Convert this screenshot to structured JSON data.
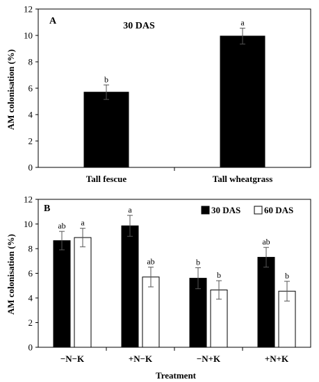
{
  "chart_data": [
    {
      "type": "bar",
      "panel_label": "A",
      "subtitle": "30 DAS",
      "ylabel": "AM colonisation (%)",
      "xlabel": "",
      "ylim": [
        0,
        12
      ],
      "yticks": [
        0,
        2,
        4,
        6,
        8,
        10,
        12
      ],
      "categories": [
        "Tall fescue",
        "Tall wheatgrass"
      ],
      "series": [
        {
          "name": "",
          "color": "#000000",
          "values": [
            5.7,
            9.95
          ],
          "errors": [
            0.55,
            0.6
          ],
          "letters": [
            "b",
            "a"
          ]
        }
      ],
      "grid": false,
      "legend": "none"
    },
    {
      "type": "bar",
      "panel_label": "B",
      "ylabel": "AM colonisation (%)",
      "xlabel": "Treatment",
      "ylim": [
        0,
        12
      ],
      "yticks": [
        0,
        2,
        4,
        6,
        8,
        10,
        12
      ],
      "categories": [
        "−N−K",
        "+N−K",
        "−N+K",
        "+N+K"
      ],
      "series": [
        {
          "name": "30 DAS",
          "color": "#000000",
          "values": [
            8.65,
            9.85,
            5.6,
            7.3
          ],
          "errors": [
            0.75,
            0.85,
            0.85,
            0.8
          ],
          "letters": [
            "ab",
            "a",
            "b",
            "ab"
          ]
        },
        {
          "name": "60 DAS",
          "color": "#ffffff",
          "values": [
            8.9,
            5.7,
            4.65,
            4.55
          ],
          "errors": [
            0.75,
            0.8,
            0.75,
            0.8
          ],
          "letters": [
            "a",
            "ab",
            "b",
            "b"
          ]
        }
      ],
      "grid": false,
      "legend": "top-right"
    }
  ]
}
